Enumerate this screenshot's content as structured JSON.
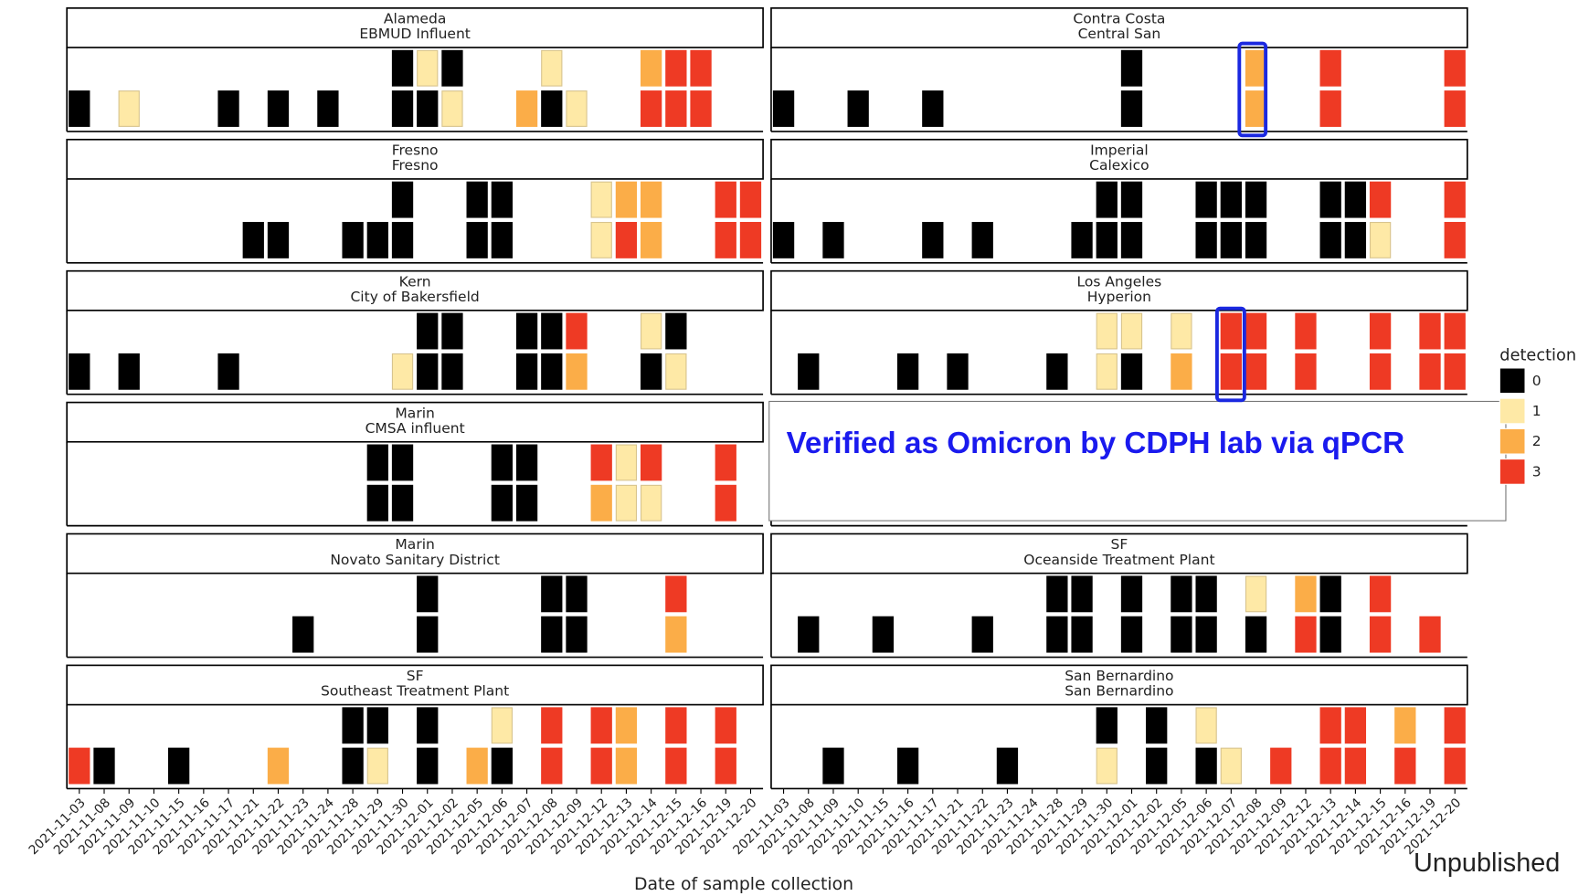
{
  "chart_data": {
    "type": "tile",
    "x_label": "Date of sample collection",
    "annotation": "Verified as Omicron by CDPH lab via qPCR",
    "note": "Unpublished",
    "categories": [
      "2021-11-03",
      "2021-11-08",
      "2021-11-09",
      "2021-11-10",
      "2021-11-15",
      "2021-11-16",
      "2021-11-17",
      "2021-11-21",
      "2021-11-22",
      "2021-11-23",
      "2021-11-24",
      "2021-11-28",
      "2021-11-29",
      "2021-11-30",
      "2021-12-01",
      "2021-12-02",
      "2021-12-05",
      "2021-12-06",
      "2021-12-07",
      "2021-12-08",
      "2021-12-09",
      "2021-12-12",
      "2021-12-13",
      "2021-12-14",
      "2021-12-15",
      "2021-12-16",
      "2021-12-19",
      "2021-12-20"
    ],
    "legend": {
      "title": "detection",
      "levels": [
        0,
        1,
        2,
        3
      ],
      "colors": [
        "#000000",
        "#fee9a6",
        "#fbad48",
        "#ee3a24"
      ]
    },
    "panels": [
      {
        "county": "Alameda",
        "site": "EBMUD Influent",
        "rows": [
          [
            null,
            null,
            null,
            null,
            null,
            null,
            null,
            null,
            null,
            null,
            null,
            null,
            null,
            0,
            1,
            0,
            null,
            null,
            null,
            1,
            null,
            null,
            null,
            2,
            3,
            3,
            null,
            null
          ],
          [
            0,
            null,
            1,
            null,
            null,
            null,
            0,
            null,
            0,
            null,
            0,
            null,
            null,
            0,
            0,
            1,
            null,
            null,
            2,
            0,
            1,
            null,
            null,
            3,
            3,
            3,
            null,
            null
          ]
        ]
      },
      {
        "county": "Contra Costa",
        "site": "Central San",
        "rows": [
          [
            null,
            null,
            null,
            null,
            null,
            null,
            null,
            null,
            null,
            null,
            null,
            null,
            null,
            null,
            0,
            null,
            null,
            null,
            null,
            2,
            null,
            null,
            3,
            null,
            null,
            null,
            null,
            3
          ],
          [
            0,
            null,
            null,
            0,
            null,
            null,
            0,
            null,
            null,
            null,
            null,
            null,
            null,
            null,
            0,
            null,
            null,
            null,
            null,
            2,
            null,
            null,
            3,
            null,
            null,
            null,
            null,
            3
          ]
        ]
      },
      {
        "county": "Fresno",
        "site": "Fresno",
        "rows": [
          [
            null,
            null,
            null,
            null,
            null,
            null,
            null,
            null,
            null,
            null,
            null,
            null,
            null,
            0,
            null,
            null,
            0,
            0,
            null,
            null,
            null,
            1,
            2,
            2,
            null,
            null,
            3,
            3
          ],
          [
            null,
            null,
            null,
            null,
            null,
            null,
            null,
            0,
            0,
            null,
            null,
            0,
            0,
            0,
            null,
            null,
            0,
            0,
            null,
            null,
            null,
            1,
            3,
            2,
            null,
            null,
            3,
            3
          ]
        ]
      },
      {
        "county": "Imperial",
        "site": "Calexico",
        "rows": [
          [
            null,
            null,
            null,
            null,
            null,
            null,
            null,
            null,
            null,
            null,
            null,
            null,
            null,
            0,
            0,
            null,
            null,
            0,
            0,
            0,
            null,
            null,
            0,
            0,
            3,
            null,
            null,
            3
          ],
          [
            0,
            null,
            0,
            null,
            null,
            null,
            0,
            null,
            0,
            null,
            null,
            null,
            0,
            0,
            0,
            null,
            null,
            0,
            0,
            0,
            null,
            null,
            0,
            0,
            1,
            null,
            null,
            3
          ]
        ]
      },
      {
        "county": "Kern",
        "site": "City of Bakersfield",
        "rows": [
          [
            null,
            null,
            null,
            null,
            null,
            null,
            null,
            null,
            null,
            null,
            null,
            null,
            null,
            null,
            0,
            0,
            null,
            null,
            0,
            0,
            3,
            null,
            null,
            1,
            0,
            null,
            null,
            null
          ],
          [
            0,
            null,
            0,
            null,
            null,
            null,
            0,
            null,
            null,
            null,
            null,
            null,
            null,
            1,
            0,
            0,
            null,
            null,
            0,
            0,
            2,
            null,
            null,
            0,
            1,
            null,
            null,
            null
          ]
        ]
      },
      {
        "county": "Los Angeles",
        "site": "Hyperion",
        "rows": [
          [
            null,
            null,
            null,
            null,
            null,
            null,
            null,
            null,
            null,
            null,
            null,
            null,
            null,
            1,
            1,
            null,
            1,
            null,
            3,
            3,
            null,
            3,
            null,
            null,
            3,
            null,
            3,
            3
          ],
          [
            null,
            0,
            null,
            null,
            null,
            0,
            null,
            0,
            null,
            null,
            null,
            0,
            null,
            1,
            0,
            null,
            2,
            null,
            3,
            3,
            null,
            3,
            null,
            null,
            3,
            null,
            3,
            3
          ]
        ]
      },
      {
        "county": "Marin",
        "site": "CMSA influent",
        "rows": [
          [
            null,
            null,
            null,
            null,
            null,
            null,
            null,
            null,
            null,
            null,
            null,
            null,
            0,
            0,
            null,
            null,
            null,
            0,
            0,
            null,
            null,
            3,
            1,
            3,
            null,
            null,
            3,
            null
          ],
          [
            null,
            null,
            null,
            null,
            null,
            null,
            null,
            null,
            null,
            null,
            null,
            null,
            0,
            0,
            null,
            null,
            null,
            0,
            0,
            null,
            null,
            2,
            1,
            1,
            null,
            null,
            3,
            null
          ]
        ]
      },
      {
        "county": "Marin",
        "site": "Novato Sanitary District",
        "rows": [
          [
            null,
            null,
            null,
            null,
            null,
            null,
            null,
            null,
            null,
            null,
            null,
            null,
            null,
            null,
            0,
            null,
            null,
            null,
            null,
            0,
            0,
            null,
            null,
            null,
            3,
            null,
            null,
            null
          ],
          [
            null,
            null,
            null,
            null,
            null,
            null,
            null,
            null,
            null,
            0,
            null,
            null,
            null,
            null,
            0,
            null,
            null,
            null,
            null,
            0,
            0,
            null,
            null,
            null,
            2,
            null,
            null,
            null
          ]
        ]
      },
      {
        "county": "SF",
        "site": "Oceanside Treatment Plant",
        "rows": [
          [
            null,
            null,
            null,
            null,
            null,
            null,
            null,
            null,
            null,
            null,
            null,
            0,
            0,
            null,
            0,
            null,
            0,
            0,
            null,
            1,
            null,
            2,
            0,
            null,
            3,
            null,
            null,
            null
          ],
          [
            null,
            0,
            null,
            null,
            0,
            null,
            null,
            null,
            0,
            null,
            null,
            0,
            0,
            null,
            0,
            null,
            0,
            0,
            null,
            0,
            null,
            3,
            0,
            null,
            3,
            null,
            3,
            null
          ]
        ]
      },
      {
        "county": "SF",
        "site": "Southeast Treatment Plant",
        "rows": [
          [
            null,
            null,
            null,
            null,
            null,
            null,
            null,
            null,
            null,
            null,
            null,
            0,
            0,
            null,
            0,
            null,
            null,
            1,
            null,
            3,
            null,
            3,
            2,
            null,
            3,
            null,
            3,
            null
          ],
          [
            3,
            0,
            null,
            null,
            0,
            null,
            null,
            null,
            2,
            null,
            null,
            0,
            1,
            null,
            0,
            null,
            2,
            0,
            null,
            3,
            null,
            3,
            2,
            null,
            3,
            null,
            3,
            null
          ]
        ]
      },
      {
        "county": "San Bernardino",
        "site": "San Bernardino",
        "rows": [
          [
            null,
            null,
            null,
            null,
            null,
            null,
            null,
            null,
            null,
            null,
            null,
            null,
            null,
            0,
            null,
            0,
            null,
            1,
            null,
            null,
            null,
            null,
            3,
            3,
            null,
            2,
            null,
            3
          ],
          [
            null,
            null,
            0,
            null,
            null,
            0,
            null,
            null,
            null,
            0,
            null,
            null,
            null,
            1,
            null,
            0,
            null,
            0,
            1,
            null,
            3,
            null,
            3,
            3,
            null,
            3,
            null,
            3
          ]
        ]
      }
    ]
  }
}
